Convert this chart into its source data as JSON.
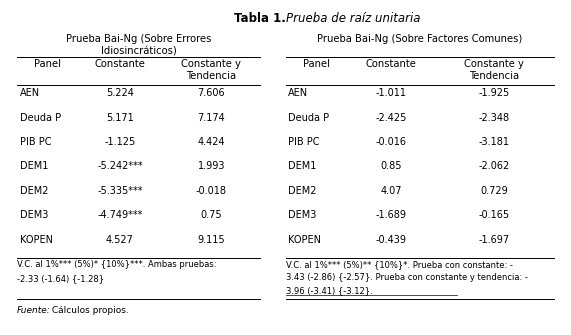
{
  "title_bold": "Tabla 1.",
  "title_italic": "Prueba de raíz unitaria",
  "left_section_header_1": "Prueba Bai-Ng (Sobre Errores",
  "left_section_header_2": "Idiosincráticos)",
  "right_section_header": "Prueba Bai-Ng (Sobre Factores Comunes)",
  "left_data": [
    [
      "AEN",
      "5.224",
      "7.606"
    ],
    [
      "Deuda P",
      "5.171",
      "7.174"
    ],
    [
      "PIB PC",
      "-1.125",
      "4.424"
    ],
    [
      "DEM1",
      "-5.242***",
      "1.993"
    ],
    [
      "DEM2",
      "-5.335***",
      "-0.018"
    ],
    [
      "DEM3",
      "-4.749***",
      "0.75"
    ],
    [
      "KOPEN",
      "4.527",
      "9.115"
    ]
  ],
  "right_data": [
    [
      "AEN",
      "-1.011",
      "-1.925"
    ],
    [
      "Deuda P",
      "-2.425",
      "-2.348"
    ],
    [
      "PIB PC",
      "-0.016",
      "-3.181"
    ],
    [
      "DEM1",
      "0.85",
      "-2.062"
    ],
    [
      "DEM2",
      "4.07",
      "0.729"
    ],
    [
      "DEM3",
      "-1.689",
      "-0.165"
    ],
    [
      "KOPEN",
      "-0.439",
      "-1.697"
    ]
  ],
  "left_footnote_line1": "V.C. al 1%*** (5%)* {10%}***. Ambas pruebas:",
  "left_footnote_line2": "-2.33 (-1.64) {-1.28}",
  "right_footnote_line1": "V.C. al 1%*** (5%)** {10%}*. Prueba con constante: -",
  "right_footnote_line2": "3.43 (-2.86) {-2.57}. Prueba con constante y tendencia: -",
  "right_footnote_line3": "3.96 (-3.41) {-3.12}.",
  "source_italic": "Fuente:",
  "source_normal": " Cálculos propios.",
  "bg_color": "#ffffff"
}
